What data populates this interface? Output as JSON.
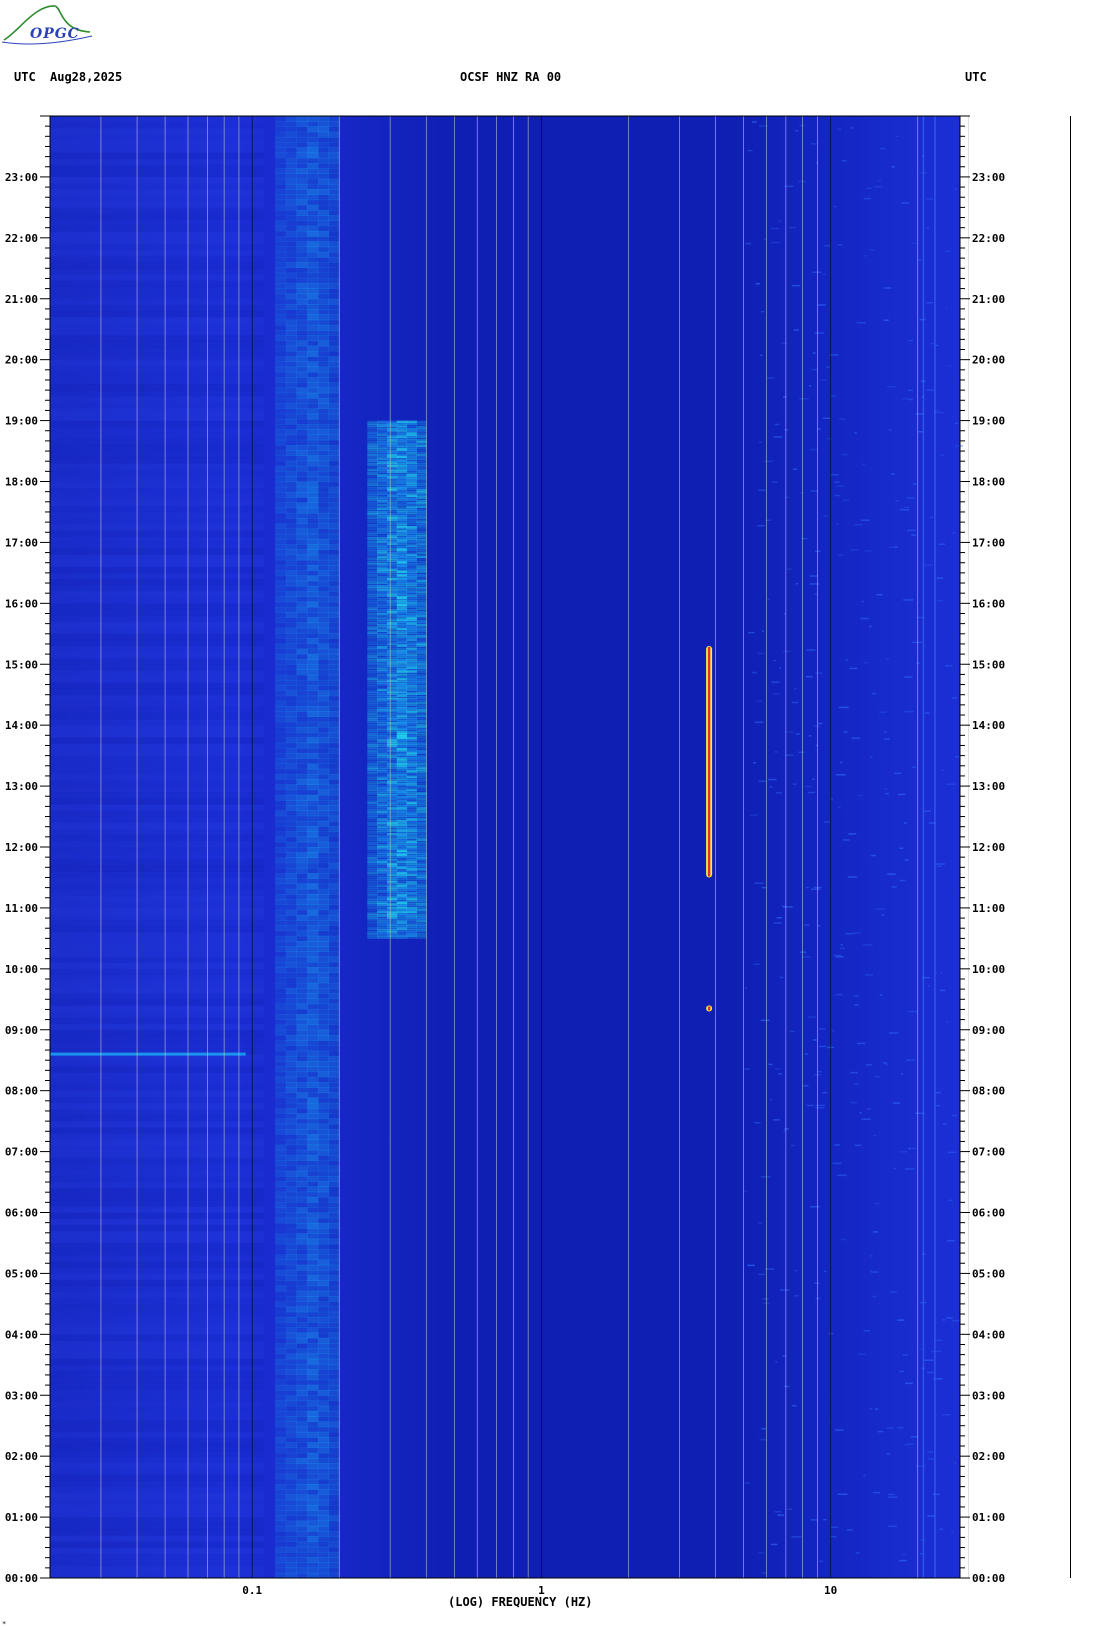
{
  "header": {
    "utc_left": "UTC",
    "date": "Aug28,2025",
    "station": "OCSF HNZ RA 00",
    "utc_right": "UTC"
  },
  "logo": {
    "text": "OPGC",
    "color": "#2a44b8",
    "swoosh_color": "#2e8b2e"
  },
  "colors": {
    "background_blue": "#1c2fd6",
    "low_freq_blue": "#1a2cc8",
    "mid_blue": "#0f1fb4",
    "high_blue": "#1326c2",
    "microseism": "#1a9ef0",
    "microseism_peak": "#22e0f0",
    "event_red": "#e03030",
    "event_yellow": "#f0f040",
    "grid": "#c8c8c8"
  },
  "chart_data": {
    "type": "heatmap",
    "title": "OCSF HNZ RA 00",
    "xlabel": "(LOG) FREQUENCY (HZ)",
    "ylabel": "UTC",
    "x_scale": "log",
    "xlim": [
      0.02,
      28
    ],
    "ylim": [
      0,
      24
    ],
    "x_ticks": [
      {
        "value": 0.1,
        "label": "0.1"
      },
      {
        "value": 1,
        "label": "1"
      },
      {
        "value": 10,
        "label": "10"
      }
    ],
    "y_ticks": [
      {
        "value": 0,
        "label": "00:00"
      },
      {
        "value": 1,
        "label": "01:00"
      },
      {
        "value": 2,
        "label": "02:00"
      },
      {
        "value": 3,
        "label": "03:00"
      },
      {
        "value": 4,
        "label": "04:00"
      },
      {
        "value": 5,
        "label": "05:00"
      },
      {
        "value": 6,
        "label": "06:00"
      },
      {
        "value": 7,
        "label": "07:00"
      },
      {
        "value": 8,
        "label": "08:00"
      },
      {
        "value": 9,
        "label": "09:00"
      },
      {
        "value": 10,
        "label": "10:00"
      },
      {
        "value": 11,
        "label": "11:00"
      },
      {
        "value": 12,
        "label": "12:00"
      },
      {
        "value": 13,
        "label": "13:00"
      },
      {
        "value": 14,
        "label": "14:00"
      },
      {
        "value": 15,
        "label": "15:00"
      },
      {
        "value": 16,
        "label": "16:00"
      },
      {
        "value": 17,
        "label": "17:00"
      },
      {
        "value": 18,
        "label": "18:00"
      },
      {
        "value": 19,
        "label": "19:00"
      },
      {
        "value": 20,
        "label": "20:00"
      },
      {
        "value": 21,
        "label": "21:00"
      },
      {
        "value": 22,
        "label": "22:00"
      },
      {
        "value": 23,
        "label": "23:00"
      }
    ],
    "grid_lines_hz": [
      0.03,
      0.04,
      0.05,
      0.06,
      0.07,
      0.08,
      0.09,
      0.1,
      0.2,
      0.3,
      0.4,
      0.5,
      0.6,
      0.7,
      0.8,
      0.9,
      1,
      2,
      3,
      4,
      5,
      6,
      7,
      8,
      9,
      10,
      20,
      30
    ],
    "bands": [
      {
        "name": "microseism",
        "f_min": 0.12,
        "f_max": 0.2,
        "t_min": 0,
        "t_max": 24,
        "intensity": 0.55
      },
      {
        "name": "secondary-microseism",
        "f_min": 0.25,
        "f_max": 0.4,
        "t_min": 10.5,
        "t_max": 19,
        "intensity": 0.85
      }
    ],
    "events": [
      {
        "name": "tremor-line",
        "freq_hz": 3.8,
        "t_start": 11.5,
        "t_end": 15.3
      },
      {
        "name": "short-event",
        "freq_hz": 3.8,
        "t_start": 9.3,
        "t_end": 9.4
      },
      {
        "name": "horizontal-streak",
        "f_min": 0.02,
        "f_max": 0.095,
        "time": 8.6
      }
    ]
  },
  "footnote": "*"
}
